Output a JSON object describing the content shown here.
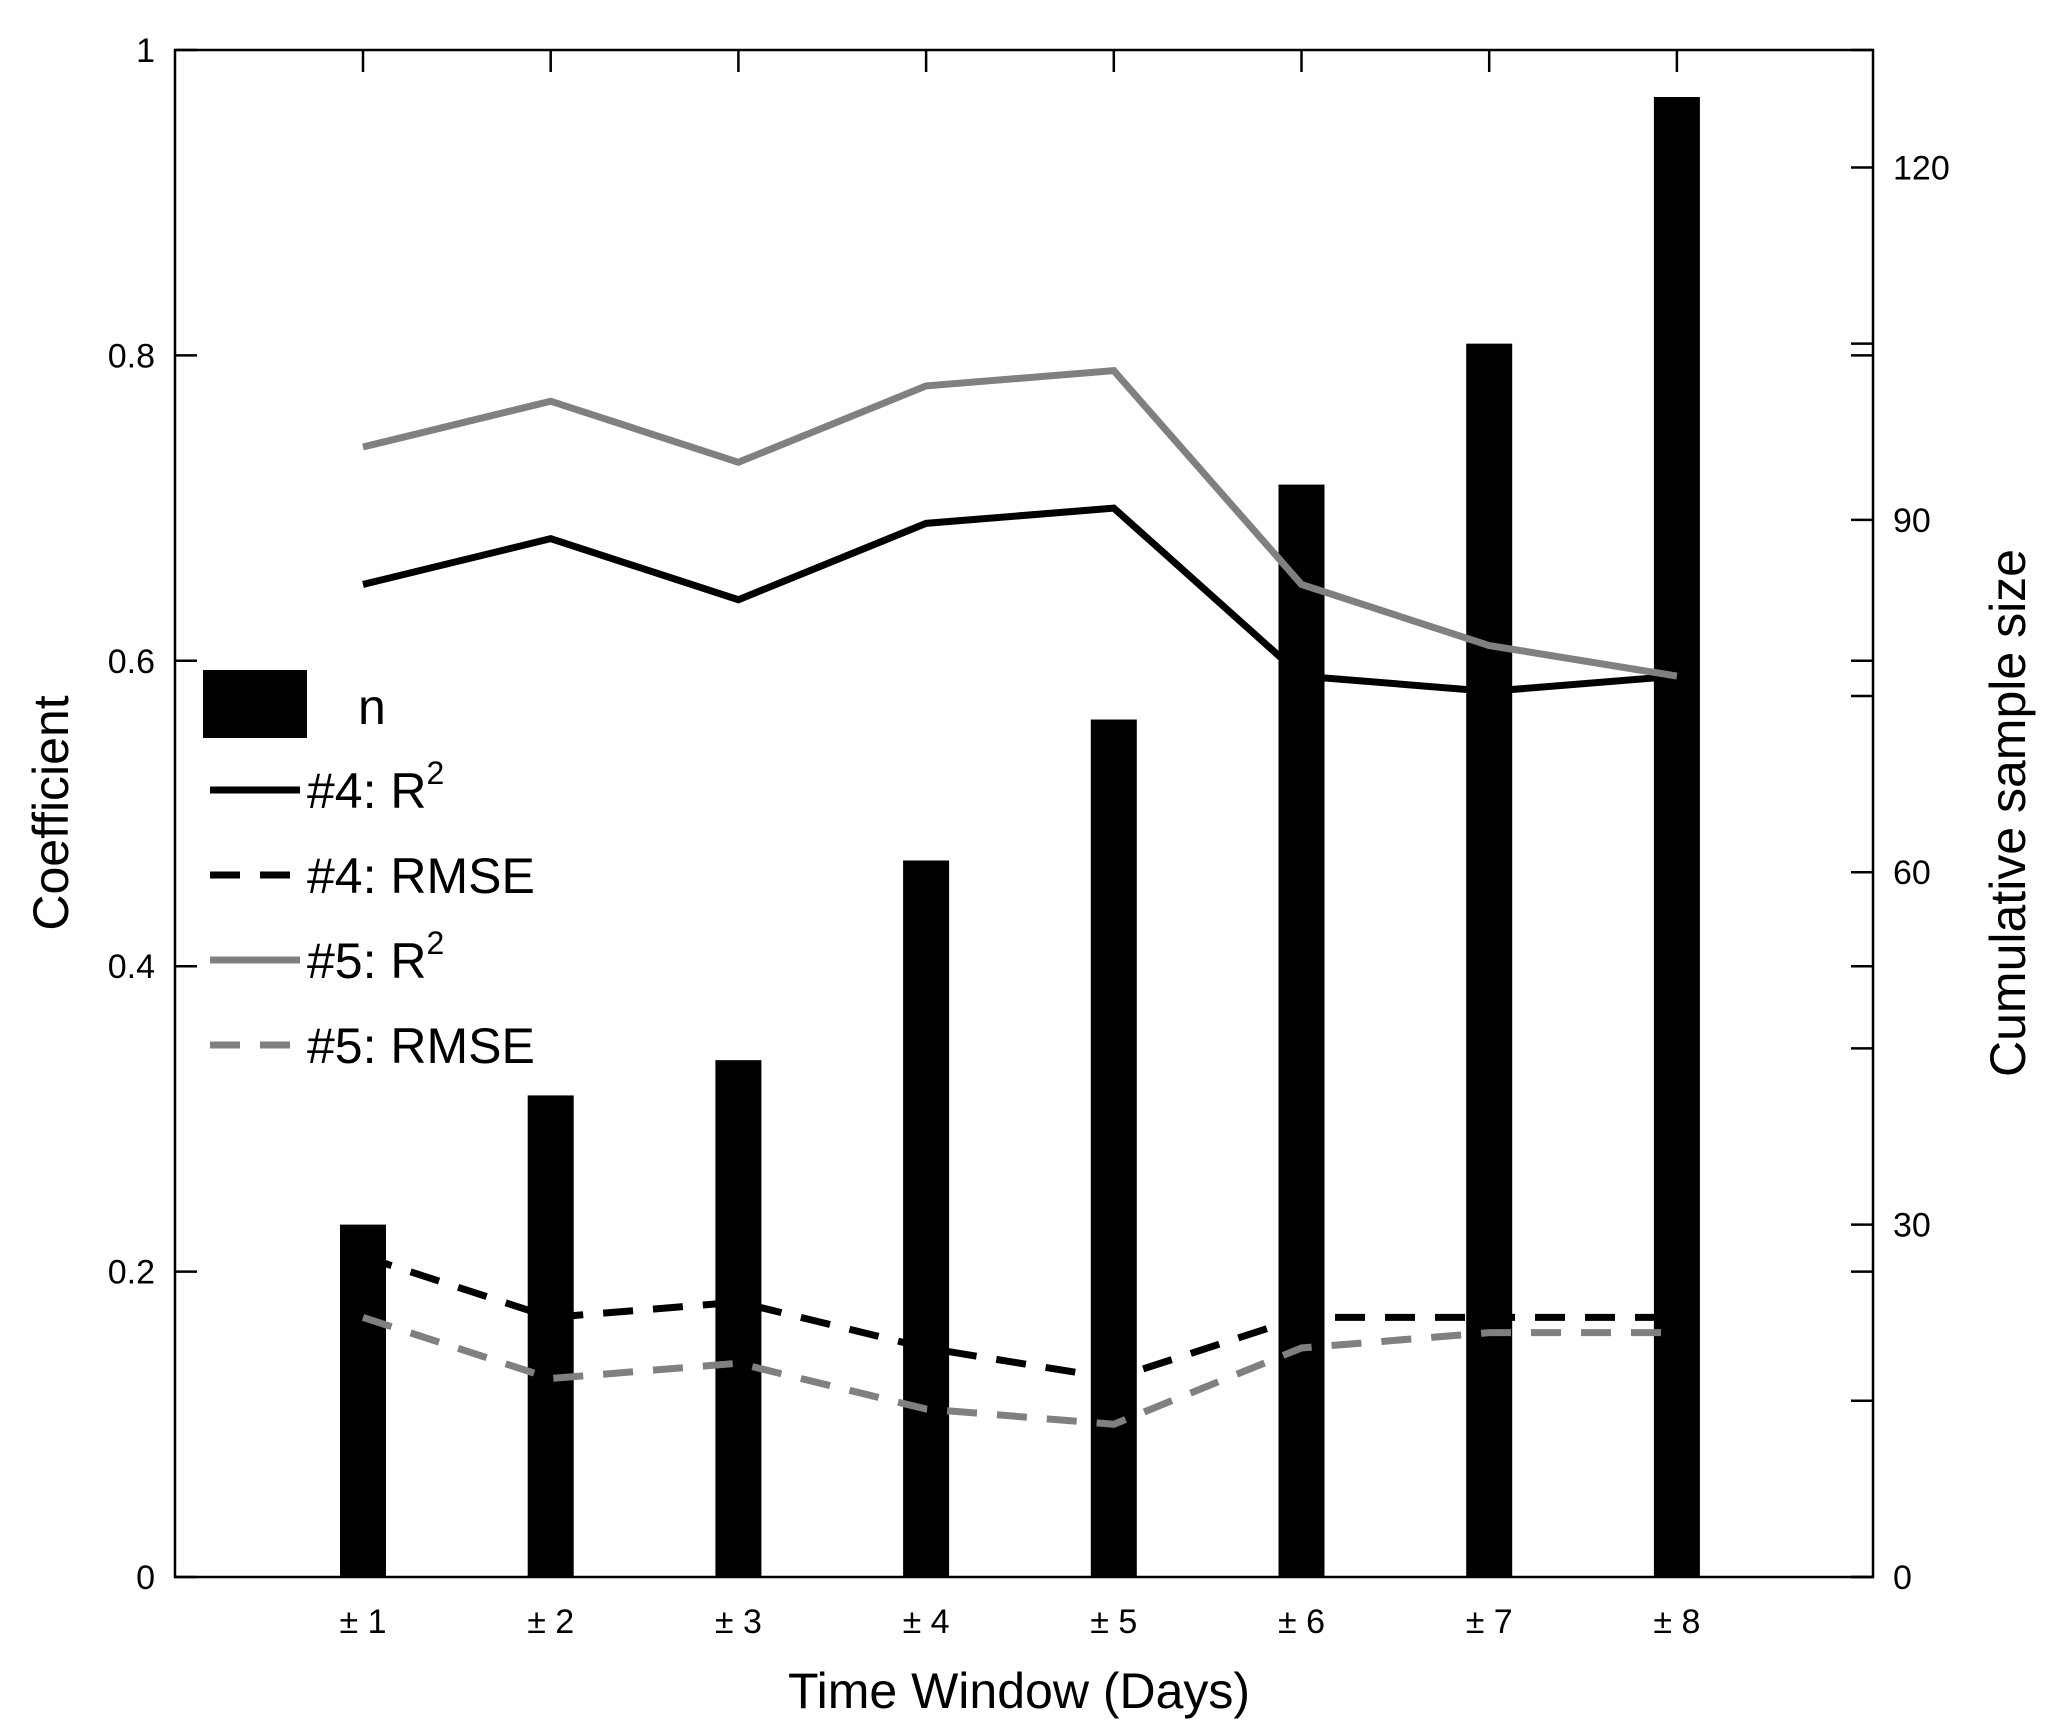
{
  "chart_data": {
    "type": "bar+line",
    "title": "",
    "xlabel": "Time Window (Days)",
    "ylabel_left": "Coefficient",
    "ylabel_right": "Cumulative sample size",
    "categories": [
      "± 1",
      "± 2",
      "± 3",
      "± 4",
      "± 5",
      "± 6",
      "± 7",
      "± 8"
    ],
    "ylim_left": [
      0,
      1
    ],
    "ylim_right": [
      0,
      130
    ],
    "yticks_left": [
      "0",
      "0.2",
      "0.4",
      "0.6",
      "0.8",
      "1"
    ],
    "yticks_right": [
      "0",
      "30",
      "60",
      "90",
      "120"
    ],
    "grid": false,
    "legend_position": "left-middle",
    "bars": {
      "name": "n",
      "axis": "right",
      "color": "#000000",
      "values": [
        30,
        41,
        44,
        61,
        73,
        93,
        105,
        126
      ]
    },
    "series": [
      {
        "name_prefix": "#4: ",
        "name_main": "R",
        "name_sup": "2",
        "axis": "left",
        "color": "#000000",
        "dash": false,
        "values": [
          0.65,
          0.68,
          0.64,
          0.69,
          0.7,
          0.59,
          0.58,
          0.59
        ]
      },
      {
        "name_prefix": "#4: ",
        "name_main": "RMSE",
        "name_sup": "",
        "axis": "left",
        "color": "#000000",
        "dash": true,
        "values": [
          0.21,
          0.17,
          0.18,
          0.15,
          0.13,
          0.17,
          0.17,
          0.17
        ]
      },
      {
        "name_prefix": "#5: ",
        "name_main": "R",
        "name_sup": "2",
        "axis": "left",
        "color": "#808080",
        "dash": false,
        "values": [
          0.74,
          0.77,
          0.73,
          0.78,
          0.79,
          0.65,
          0.61,
          0.59
        ]
      },
      {
        "name_prefix": "#5: ",
        "name_main": "RMSE",
        "name_sup": "",
        "axis": "left",
        "color": "#808080",
        "dash": true,
        "values": [
          0.17,
          0.13,
          0.14,
          0.11,
          0.1,
          0.15,
          0.16,
          0.16
        ]
      }
    ]
  }
}
